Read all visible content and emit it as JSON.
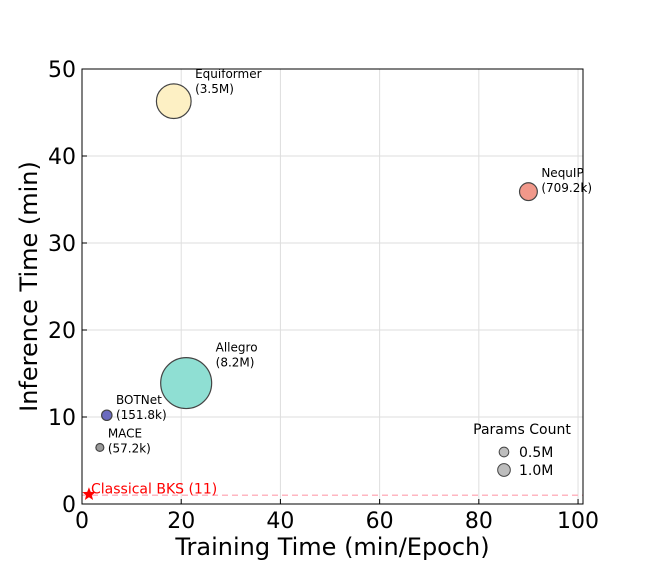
{
  "chart_data": {
    "type": "scatter",
    "title": "",
    "xlabel": "Training Time (min/Epoch)",
    "ylabel": "Inference Time (min)",
    "xlim": [
      0,
      101
    ],
    "ylim": [
      0,
      50
    ],
    "x_ticks": [
      0,
      20,
      40,
      60,
      80,
      100
    ],
    "y_ticks": [
      0,
      10,
      20,
      30,
      40,
      50
    ],
    "grid": true,
    "points": [
      {
        "name": "Equiformer",
        "params": "(3.5M)",
        "params_m": 3.5,
        "x": 18.5,
        "y": 46.3,
        "color": "#fdf0c4"
      },
      {
        "name": "NequIP",
        "params": "(709.2k)",
        "params_m": 0.7092,
        "x": 90,
        "y": 35.9,
        "color": "#f1988a"
      },
      {
        "name": "Allegro",
        "params": "(8.2M)",
        "params_m": 8.2,
        "x": 21,
        "y": 13.9,
        "color": "#8fdfd3"
      },
      {
        "name": "BOTNet",
        "params": "(151.8k)",
        "params_m": 0.1518,
        "x": 5,
        "y": 10.2,
        "color": "#6b6bbf"
      },
      {
        "name": "MACE",
        "params": "(57.2k)",
        "params_m": 0.0572,
        "x": 3.6,
        "y": 6.5,
        "color": "#9a9a9a"
      }
    ],
    "baseline": {
      "label": "Classical BKS (11)",
      "x": 1,
      "y": 1,
      "color": "#ff0000",
      "line_color": "#ffb6c1"
    },
    "legend": {
      "title": "Params Count",
      "position": "lower-right",
      "entries": [
        {
          "label": "0.5M",
          "params_m": 0.5
        },
        {
          "label": "1.0M",
          "params_m": 1.0
        }
      ]
    }
  }
}
